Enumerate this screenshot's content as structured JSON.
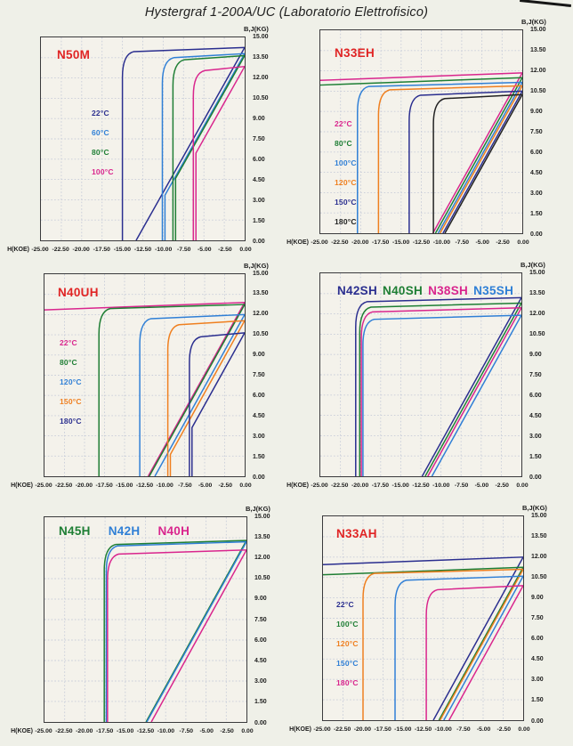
{
  "title": "Hystergraf 1-200A/UC (Laboratorio Elettrofisico)",
  "colors": {
    "navy": "#2a2e8f",
    "blue": "#2f7fd6",
    "green": "#1e7e34",
    "magenta": "#d9258d",
    "orange": "#ef7f1f",
    "black": "#222222",
    "red": "#e02424",
    "grid": "#c7ccd9",
    "plot_bg": "#f4f2eb",
    "page_bg": "#eff0e8"
  },
  "axes": {
    "x_label": "H(KOE)",
    "y_label": "B,J(KG)",
    "x_ticks": [
      "-25.00",
      "-22.50",
      "-20.00",
      "-17.50",
      "-15.00",
      "-12.50",
      "-10.00",
      "-7.50",
      "-5.00",
      "-2.50",
      "0.00"
    ],
    "y_ticks": [
      "15.00",
      "13.50",
      "12.00",
      "10.50",
      "9.00",
      "7.50",
      "6.00",
      "4.50",
      "3.00",
      "1.50",
      "0.00"
    ],
    "xlim": [
      -25,
      0
    ],
    "ylim": [
      0,
      15
    ],
    "grid": "on, 2.5 KOE x 1.5 KG cells, dotted"
  },
  "curve_model": {
    "description": "NdFeB demagnetization curves, 2nd quadrant. Each series = intrinsic J curve (flat top, knee, steep drop at Hcj) + normal B line from (0,Br) with recoil slope; hcj_koe null means coercivity lies beyond chart range (-25 KOE).",
    "recoil_slope_kg_per_koe": 1.07
  },
  "chart_data": [
    {
      "id": "N50M",
      "position": "top-left",
      "type": "line",
      "title": "N50M",
      "xlabel": "H(KOE)",
      "ylabel": "B,J(KG)",
      "xlim": [
        -25,
        0
      ],
      "ylim": [
        0,
        15
      ],
      "grade_labels": [
        {
          "text": "N50M",
          "color": "red"
        }
      ],
      "legend": [
        {
          "label": "22°C",
          "color": "navy"
        },
        {
          "label": "60°C",
          "color": "blue"
        },
        {
          "label": "80°C",
          "color": "green"
        },
        {
          "label": "100°C",
          "color": "magenta"
        }
      ],
      "series": [
        {
          "name": "22°C",
          "color": "navy",
          "br_kg": 14.25,
          "hcj_koe": -15.0
        },
        {
          "name": "60°C",
          "color": "blue",
          "br_kg": 13.8,
          "hcj_koe": -10.1
        },
        {
          "name": "80°C",
          "color": "green",
          "br_kg": 13.65,
          "hcj_koe": -8.8
        },
        {
          "name": "100°C",
          "color": "magenta",
          "br_kg": 12.85,
          "hcj_koe": -6.3
        }
      ]
    },
    {
      "id": "N33EH",
      "position": "top-right",
      "type": "line",
      "title": "N33EH",
      "xlabel": "H(KOE)",
      "ylabel": "B,J(KG)",
      "xlim": [
        -25,
        0
      ],
      "ylim": [
        0,
        15
      ],
      "grade_labels": [
        {
          "text": "N33EH",
          "color": "red"
        }
      ],
      "legend": [
        {
          "label": "22°C",
          "color": "magenta"
        },
        {
          "label": "80°C",
          "color": "green"
        },
        {
          "label": "100°C",
          "color": "blue"
        },
        {
          "label": "120°C",
          "color": "orange"
        },
        {
          "label": "150°C",
          "color": "navy"
        },
        {
          "label": "180°C",
          "color": "black"
        }
      ],
      "series": [
        {
          "name": "22°C",
          "color": "magenta",
          "br_kg": 11.85,
          "hcj_koe": null
        },
        {
          "name": "80°C",
          "color": "green",
          "br_kg": 11.5,
          "hcj_koe": null
        },
        {
          "name": "100°C",
          "color": "blue",
          "br_kg": 11.15,
          "hcj_koe": -20.4
        },
        {
          "name": "120°C",
          "color": "orange",
          "br_kg": 10.9,
          "hcj_koe": -17.8
        },
        {
          "name": "150°C",
          "color": "navy",
          "br_kg": 10.5,
          "hcj_koe": -14.0
        },
        {
          "name": "180°C",
          "color": "black",
          "br_kg": 10.25,
          "hcj_koe": -11.0
        }
      ]
    },
    {
      "id": "N40UH",
      "position": "middle-left",
      "type": "line",
      "title": "N40UH",
      "xlabel": "H(KOE)",
      "ylabel": "B,J(KG)",
      "xlim": [
        -25,
        0
      ],
      "ylim": [
        0,
        15
      ],
      "grade_labels": [
        {
          "text": "N40UH",
          "color": "red"
        }
      ],
      "legend": [
        {
          "label": "22°C",
          "color": "magenta"
        },
        {
          "label": "80°C",
          "color": "green"
        },
        {
          "label": "120°C",
          "color": "blue"
        },
        {
          "label": "150°C",
          "color": "orange"
        },
        {
          "label": "180°C",
          "color": "navy"
        }
      ],
      "series": [
        {
          "name": "22°C",
          "color": "magenta",
          "br_kg": 12.9,
          "hcj_koe": null
        },
        {
          "name": "80°C",
          "color": "green",
          "br_kg": 12.75,
          "hcj_koe": -18.2
        },
        {
          "name": "120°C",
          "color": "blue",
          "br_kg": 12.0,
          "hcj_koe": -13.1
        },
        {
          "name": "150°C",
          "color": "orange",
          "br_kg": 11.55,
          "hcj_koe": -9.6
        },
        {
          "name": "180°C",
          "color": "navy",
          "br_kg": 10.65,
          "hcj_koe": -6.9
        }
      ]
    },
    {
      "id": "SH-grades",
      "position": "middle-right",
      "type": "line",
      "title": "N42SH N40SH N38SH N35SH",
      "xlabel": "H(KOE)",
      "ylabel": "B,J(KG)",
      "xlim": [
        -25,
        0
      ],
      "ylim": [
        0,
        15
      ],
      "grade_labels": [
        {
          "text": "N42SH",
          "color": "navy"
        },
        {
          "text": "N40SH",
          "color": "green"
        },
        {
          "text": "N38SH",
          "color": "magenta"
        },
        {
          "text": "N35SH",
          "color": "blue"
        }
      ],
      "legend": [],
      "series": [
        {
          "name": "N42SH",
          "color": "navy",
          "br_kg": 13.2,
          "hcj_koe": -20.6
        },
        {
          "name": "N40SH",
          "color": "green",
          "br_kg": 12.8,
          "hcj_koe": -20.1
        },
        {
          "name": "N38SH",
          "color": "magenta",
          "br_kg": 12.45,
          "hcj_koe": -19.9
        },
        {
          "name": "N35SH",
          "color": "blue",
          "br_kg": 11.9,
          "hcj_koe": -19.7
        }
      ]
    },
    {
      "id": "H-grades",
      "position": "bottom-left",
      "type": "line",
      "title": "N45H N42H N40H",
      "xlabel": "H(KOE)",
      "ylabel": "B,J(KG)",
      "xlim": [
        -25,
        0
      ],
      "ylim": [
        0,
        15
      ],
      "grade_labels": [
        {
          "text": "N45H",
          "color": "green"
        },
        {
          "text": "N42H",
          "color": "blue"
        },
        {
          "text": "N40H",
          "color": "magenta"
        }
      ],
      "legend": [],
      "series": [
        {
          "name": "N45H",
          "color": "green",
          "br_kg": 13.3,
          "hcj_koe": -17.6
        },
        {
          "name": "N42H",
          "color": "blue",
          "br_kg": 13.2,
          "hcj_koe": -17.35
        },
        {
          "name": "N40H",
          "color": "magenta",
          "br_kg": 12.6,
          "hcj_koe": -17.2
        }
      ]
    },
    {
      "id": "N33AH",
      "position": "bottom-right",
      "type": "line",
      "title": "N33AH",
      "xlabel": "H(KOE)",
      "ylabel": "B,J(KG)",
      "xlim": [
        -25,
        0
      ],
      "ylim": [
        0,
        15
      ],
      "grade_labels": [
        {
          "text": "N33AH",
          "color": "red"
        }
      ],
      "legend": [
        {
          "label": "22°C",
          "color": "navy"
        },
        {
          "label": "100°C",
          "color": "green"
        },
        {
          "label": "120°C",
          "color": "orange"
        },
        {
          "label": "150°C",
          "color": "blue"
        },
        {
          "label": "180°C",
          "color": "magenta"
        }
      ],
      "series": [
        {
          "name": "22°C",
          "color": "navy",
          "br_kg": 12.0,
          "hcj_koe": null
        },
        {
          "name": "100°C",
          "color": "green",
          "br_kg": 11.25,
          "hcj_koe": null
        },
        {
          "name": "120°C",
          "color": "orange",
          "br_kg": 11.1,
          "hcj_koe": -20.0
        },
        {
          "name": "150°C",
          "color": "blue",
          "br_kg": 10.6,
          "hcj_koe": -16.0
        },
        {
          "name": "180°C",
          "color": "magenta",
          "br_kg": 9.9,
          "hcj_koe": -12.1
        }
      ]
    }
  ]
}
